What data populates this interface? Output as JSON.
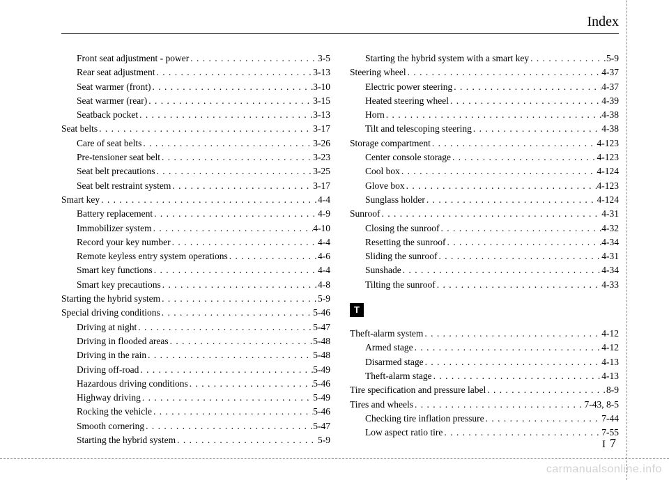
{
  "header": {
    "title": "Index"
  },
  "footer": {
    "section": "I",
    "page": "7"
  },
  "watermark": "carmanualsonline.info",
  "section_letter": "T",
  "left": [
    {
      "label": "Front seat adjustment - power",
      "page": "3-5",
      "indent": true
    },
    {
      "label": "Rear seat adjustment",
      "page": "3-13",
      "indent": true
    },
    {
      "label": "Seat warmer (front)",
      "page": "3-10",
      "indent": true
    },
    {
      "label": "Seat warmer (rear)",
      "page": "3-15",
      "indent": true
    },
    {
      "label": "Seatback pocket",
      "page": "3-13",
      "indent": true
    },
    {
      "label": "Seat belts",
      "page": "3-17",
      "indent": false
    },
    {
      "label": "Care of seat belts",
      "page": "3-26",
      "indent": true
    },
    {
      "label": "Pre-tensioner seat belt",
      "page": "3-23",
      "indent": true
    },
    {
      "label": "Seat belt precautions",
      "page": "3-25",
      "indent": true
    },
    {
      "label": "Seat belt restraint system",
      "page": "3-17",
      "indent": true
    },
    {
      "label": "Smart key",
      "page": "4-4",
      "indent": false
    },
    {
      "label": "Battery replacement",
      "page": "4-9",
      "indent": true
    },
    {
      "label": "Immobilizer system",
      "page": "4-10",
      "indent": true
    },
    {
      "label": "Record your key number",
      "page": "4-4",
      "indent": true
    },
    {
      "label": "Remote keyless entry system operations",
      "page": "4-6",
      "indent": true
    },
    {
      "label": "Smart key functions",
      "page": "4-4",
      "indent": true
    },
    {
      "label": "Smart key precautions",
      "page": "4-8",
      "indent": true
    },
    {
      "label": "Starting the hybrid system",
      "page": "5-9",
      "indent": false
    },
    {
      "label": "Special driving conditions",
      "page": "5-46",
      "indent": false
    },
    {
      "label": "Driving at night",
      "page": "5-47",
      "indent": true
    },
    {
      "label": "Driving in flooded areas",
      "page": "5-48",
      "indent": true
    },
    {
      "label": "Driving in the rain",
      "page": "5-48",
      "indent": true
    },
    {
      "label": "Driving off-road",
      "page": "5-49",
      "indent": true
    },
    {
      "label": "Hazardous driving conditions",
      "page": "5-46",
      "indent": true
    },
    {
      "label": "Highway driving",
      "page": "5-49",
      "indent": true
    },
    {
      "label": "Rocking the vehicle",
      "page": "5-46",
      "indent": true
    },
    {
      "label": "Smooth cornering",
      "page": "5-47",
      "indent": true
    },
    {
      "label": "Starting the hybrid system",
      "page": "5-9",
      "indent": true
    }
  ],
  "right_a": [
    {
      "label": "Starting the hybrid system with a smart key",
      "page": "5-9",
      "indent": true
    },
    {
      "label": "Steering wheel",
      "page": "4-37",
      "indent": false
    },
    {
      "label": "Electric power steering",
      "page": "4-37",
      "indent": true
    },
    {
      "label": "Heated steering wheel",
      "page": "4-39",
      "indent": true
    },
    {
      "label": "Horn",
      "page": "4-38",
      "indent": true
    },
    {
      "label": "Tilt and telescoping steering",
      "page": "4-38",
      "indent": true
    },
    {
      "label": "Storage compartment",
      "page": "4-123",
      "indent": false
    },
    {
      "label": "Center console storage",
      "page": "4-123",
      "indent": true
    },
    {
      "label": "Cool box",
      "page": "4-124",
      "indent": true
    },
    {
      "label": "Glove box",
      "page": "4-123",
      "indent": true
    },
    {
      "label": "Sunglass holder",
      "page": "4-124",
      "indent": true
    },
    {
      "label": "Sunroof",
      "page": "4-31",
      "indent": false
    },
    {
      "label": "Closing the sunroof",
      "page": "4-32",
      "indent": true
    },
    {
      "label": "Resetting the sunroof",
      "page": "4-34",
      "indent": true
    },
    {
      "label": "Sliding the sunroof",
      "page": "4-31",
      "indent": true
    },
    {
      "label": "Sunshade",
      "page": "4-34",
      "indent": true
    },
    {
      "label": "Tilting the sunroof",
      "page": "4-33",
      "indent": true
    }
  ],
  "right_b": [
    {
      "label": "Theft-alarm system",
      "page": "4-12",
      "indent": false
    },
    {
      "label": "Armed stage",
      "page": "4-12",
      "indent": true
    },
    {
      "label": "Disarmed stage",
      "page": "4-13",
      "indent": true
    },
    {
      "label": "Theft-alarm stage",
      "page": "4-13",
      "indent": true
    },
    {
      "label": "Tire specification and pressure label",
      "page": "8-9",
      "indent": false
    },
    {
      "label": "Tires and wheels",
      "page": "7-43, 8-5",
      "indent": false
    },
    {
      "label": "Checking tire inflation pressure",
      "page": "7-44",
      "indent": true
    },
    {
      "label": "Low aspect ratio tire",
      "page": "7-55",
      "indent": true
    }
  ]
}
